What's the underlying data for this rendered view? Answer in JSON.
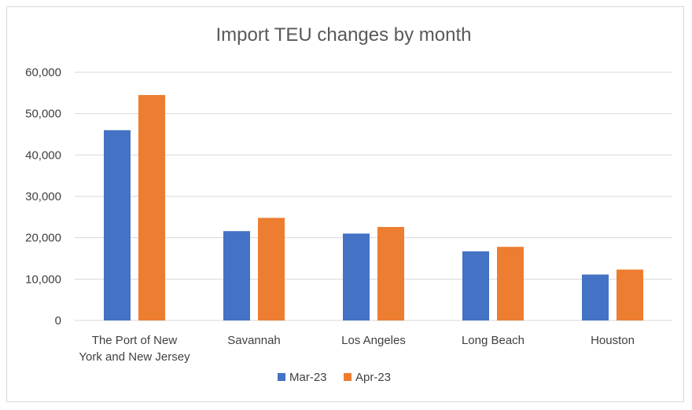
{
  "chart_data": {
    "type": "bar",
    "title": "Import TEU changes by month",
    "xlabel": "",
    "ylabel": "",
    "categories": [
      [
        "The Port of New",
        "York and New Jersey"
      ],
      [
        "Savannah"
      ],
      [
        "Los Angeles"
      ],
      [
        "Long Beach"
      ],
      [
        "Houston"
      ]
    ],
    "series": [
      {
        "name": "Mar-23",
        "color": "#4472C4",
        "values": [
          46000,
          21600,
          21000,
          16700,
          11100
        ]
      },
      {
        "name": "Apr-23",
        "color": "#ED7D31",
        "values": [
          54500,
          24800,
          22600,
          17800,
          12300
        ]
      }
    ],
    "ylim": [
      0,
      60000
    ],
    "yticks": [
      "0",
      "10,000",
      "20,000",
      "30,000",
      "40,000",
      "50,000",
      "60,000"
    ],
    "grid": true,
    "legend_position": "bottom"
  }
}
